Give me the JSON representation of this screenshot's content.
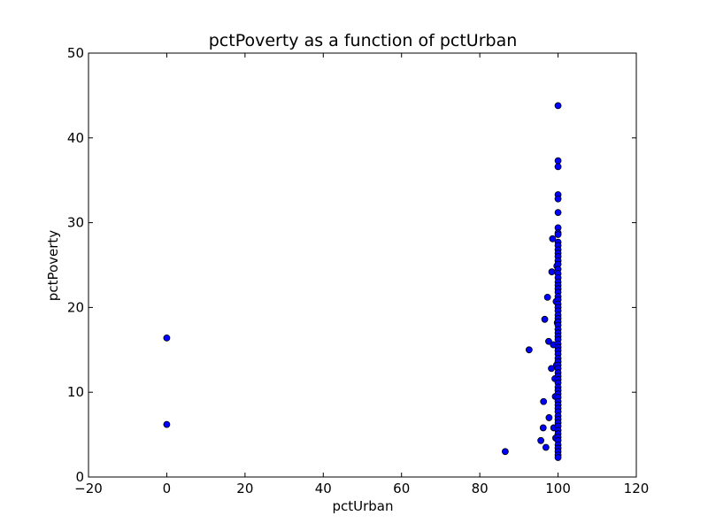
{
  "chart_data": {
    "type": "scatter",
    "title": "pctPoverty as a function of pctUrban",
    "xlabel": "pctUrban",
    "ylabel": "pctPoverty",
    "xlim": [
      -20,
      120
    ],
    "ylim": [
      0,
      50
    ],
    "xticks": [
      -20,
      0,
      20,
      40,
      60,
      80,
      100,
      120
    ],
    "yticks": [
      0,
      10,
      20,
      30,
      40,
      50
    ],
    "grid": false,
    "marker_color": "#0000ff",
    "marker_edge_color": "#000000",
    "points": [
      [
        0,
        16.4
      ],
      [
        0,
        6.2
      ],
      [
        86.5,
        3.0
      ],
      [
        92.6,
        15.0
      ],
      [
        95.6,
        4.3
      ],
      [
        96.2,
        5.8
      ],
      [
        96.3,
        8.9
      ],
      [
        96.6,
        18.6
      ],
      [
        96.9,
        3.5
      ],
      [
        97.3,
        21.2
      ],
      [
        97.6,
        16.0
      ],
      [
        97.7,
        7.0
      ],
      [
        98.3,
        12.8
      ],
      [
        98.4,
        24.2
      ],
      [
        98.6,
        28.1
      ],
      [
        98.8,
        15.6
      ],
      [
        98.9,
        5.8
      ],
      [
        99.2,
        11.6
      ],
      [
        99.3,
        9.5
      ],
      [
        99.4,
        4.6
      ],
      [
        99.5,
        20.7
      ],
      [
        99.6,
        13.2
      ],
      [
        99.7,
        24.9
      ],
      [
        99.8,
        18.2
      ],
      [
        100,
        43.8
      ],
      [
        100,
        37.3
      ],
      [
        100,
        36.6
      ],
      [
        100,
        33.3
      ],
      [
        100,
        32.8
      ],
      [
        100,
        31.2
      ],
      [
        100,
        29.4
      ],
      [
        100,
        28.8
      ],
      [
        100,
        28.6
      ],
      [
        100,
        27.7
      ],
      [
        100,
        27.3
      ],
      [
        100,
        26.8
      ],
      [
        100,
        26.4
      ],
      [
        100,
        26.0
      ],
      [
        100,
        25.5
      ],
      [
        100,
        25.1
      ],
      [
        100,
        24.5
      ],
      [
        100,
        24.0
      ],
      [
        100,
        23.5
      ],
      [
        100,
        23.0
      ],
      [
        100,
        22.6
      ],
      [
        100,
        22.2
      ],
      [
        100,
        21.8
      ],
      [
        100,
        21.3
      ],
      [
        100,
        20.9
      ],
      [
        100,
        20.4
      ],
      [
        100,
        20.0
      ],
      [
        100,
        19.6
      ],
      [
        100,
        19.1
      ],
      [
        100,
        18.7
      ],
      [
        100,
        18.3
      ],
      [
        100,
        17.9
      ],
      [
        100,
        17.4
      ],
      [
        100,
        17.0
      ],
      [
        100,
        16.6
      ],
      [
        100,
        16.2
      ],
      [
        100,
        15.7
      ],
      [
        100,
        15.3
      ],
      [
        100,
        14.9
      ],
      [
        100,
        14.5
      ],
      [
        100,
        14.0
      ],
      [
        100,
        13.6
      ],
      [
        100,
        13.2
      ],
      [
        100,
        12.8
      ],
      [
        100,
        12.3
      ],
      [
        100,
        11.9
      ],
      [
        100,
        11.5
      ],
      [
        100,
        11.1
      ],
      [
        100,
        10.6
      ],
      [
        100,
        10.2
      ],
      [
        100,
        9.8
      ],
      [
        100,
        9.4
      ],
      [
        100,
        8.9
      ],
      [
        100,
        8.5
      ],
      [
        100,
        8.1
      ],
      [
        100,
        7.7
      ],
      [
        100,
        7.2
      ],
      [
        100,
        6.8
      ],
      [
        100,
        6.4
      ],
      [
        100,
        6.0
      ],
      [
        100,
        5.5
      ],
      [
        100,
        5.1
      ],
      [
        100,
        4.7
      ],
      [
        100,
        4.3
      ],
      [
        100,
        3.8
      ],
      [
        100,
        3.4
      ],
      [
        100,
        3.0
      ],
      [
        100,
        2.6
      ],
      [
        100,
        2.3
      ]
    ]
  }
}
